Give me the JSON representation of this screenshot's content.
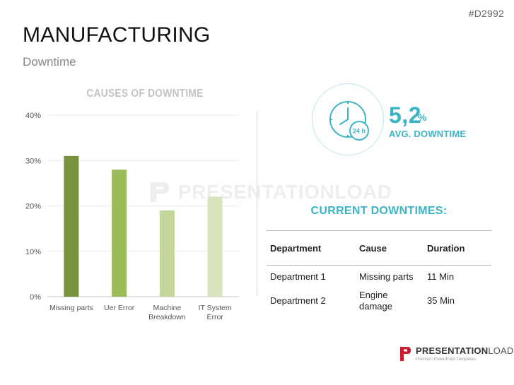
{
  "slide": {
    "code": "#D2992",
    "title": "MANUFACTURING",
    "subtitle": "Downtime"
  },
  "watermark": "PRESENTATIONLOAD",
  "chart_data": {
    "type": "bar",
    "title": "CAUSES OF DOWNTIME",
    "categories": [
      [
        "Missing parts"
      ],
      [
        "Uer Error"
      ],
      [
        "Machine",
        "Breakdown"
      ],
      [
        "IT System",
        "Error"
      ]
    ],
    "values": [
      31,
      28,
      19,
      22
    ],
    "ylim": [
      0,
      40
    ],
    "yticks": [
      0,
      10,
      20,
      30,
      40
    ],
    "ytick_labels": [
      "0%",
      "10%",
      "20%",
      "30%",
      "40%"
    ],
    "ylabel": "",
    "xlabel": "",
    "grid": true,
    "colors": [
      "#77933c",
      "#9bbb59",
      "#c3d69b",
      "#d7e4bd"
    ]
  },
  "stat": {
    "value": "5,2",
    "unit": "%",
    "label": "AVG. DOWNTIME",
    "icon_text": "24 h",
    "accent": "#3bb4c6"
  },
  "downtimes": {
    "title": "CURRENT DOWNTIMES:",
    "headers": {
      "department": "Department",
      "cause": "Cause",
      "duration": "Duration"
    },
    "rows": [
      {
        "department": "Department 1",
        "cause": "Missing parts",
        "cause_line2": "",
        "duration": "11 Min"
      },
      {
        "department": "Department 2",
        "cause": "Engine",
        "cause_line2": "damage",
        "duration": "35 Min"
      }
    ]
  },
  "brand": {
    "name_bold": "PRESENTATION",
    "name_light": "LOAD",
    "tagline": "Premium PowerPoint Templates",
    "logo_color": "#c8202f"
  }
}
